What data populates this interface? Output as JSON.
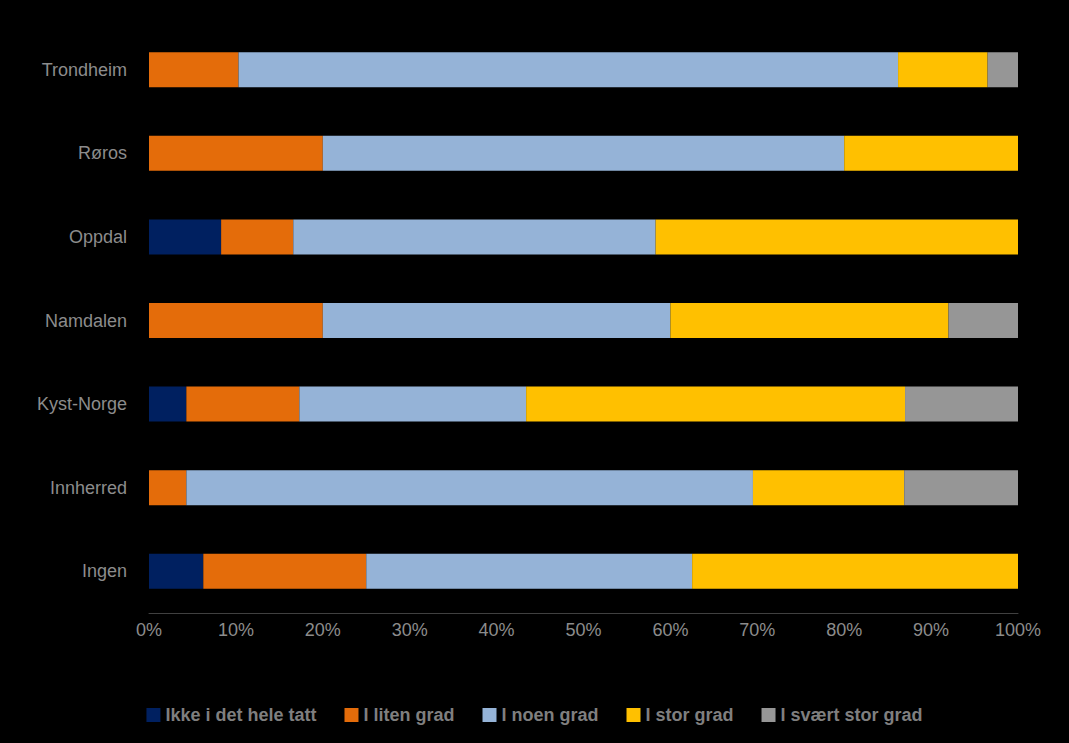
{
  "chart_data": {
    "type": "bar",
    "orientation": "horizontal",
    "stacked": true,
    "grid": false,
    "legend": "bottom",
    "categories": [
      "Trondheim",
      "Røros",
      "Oppdal",
      "Namdalen",
      "Kyst-Norge",
      "Innherred",
      "Ingen"
    ],
    "series": [
      {
        "name": "Ikke i det hele tatt",
        "color": "#002060",
        "values": [
          0,
          0,
          8.3,
          0,
          4.3,
          0,
          6.25
        ]
      },
      {
        "name": "I liten grad",
        "color": "#E46C0A",
        "values": [
          10.3,
          20,
          8.3,
          20,
          13.0,
          4.3,
          18.75
        ]
      },
      {
        "name": "I noen grad",
        "color": "#95B3D7",
        "values": [
          75.9,
          60,
          41.7,
          40,
          26.1,
          65.2,
          37.5
        ]
      },
      {
        "name": "I stor grad",
        "color": "#FFC000",
        "values": [
          10.3,
          20,
          41.7,
          32,
          43.6,
          17.4,
          37.5
        ]
      },
      {
        "name": "I svært stor grad",
        "color": "#969696",
        "values": [
          3.5,
          0,
          0,
          8,
          13.0,
          13.1,
          0
        ]
      }
    ],
    "xlim": [
      0,
      100
    ],
    "xticks": [
      {
        "value": 0,
        "label": "0%"
      },
      {
        "value": 10,
        "label": "10%"
      },
      {
        "value": 20,
        "label": "20%"
      },
      {
        "value": 30,
        "label": "30%"
      },
      {
        "value": 40,
        "label": "40%"
      },
      {
        "value": 50,
        "label": "50%"
      },
      {
        "value": 60,
        "label": "60%"
      },
      {
        "value": 70,
        "label": "70%"
      },
      {
        "value": 80,
        "label": "80%"
      },
      {
        "value": 90,
        "label": "90%"
      },
      {
        "value": 100,
        "label": "100%"
      }
    ]
  }
}
